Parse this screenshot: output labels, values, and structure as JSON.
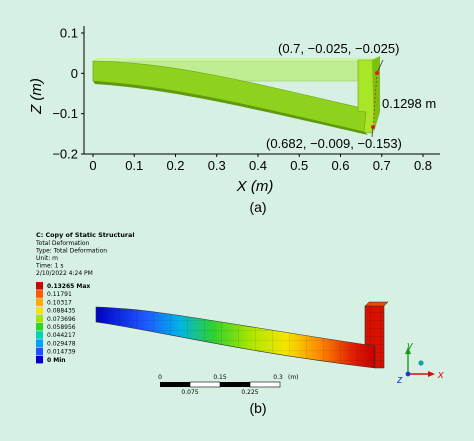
{
  "panel_a": {
    "caption": "(a)",
    "xlabel": "X (m)",
    "ylabel": "Z (m)",
    "xticks": [
      "0",
      "0.1",
      "0.2",
      "0.3",
      "0.4",
      "0.5",
      "0.6",
      "0.7",
      "0.8"
    ],
    "yticks": [
      "0.1",
      "0",
      "−0.1",
      "−0.2"
    ],
    "xlim": [
      0,
      0.8
    ],
    "ylim": [
      -0.2,
      0.1
    ],
    "annotations": {
      "top_point": "(0.7, −0.025, −0.025)",
      "bottom_point": "(0.682, −0.009, −0.153)",
      "displacement": "0.1298 m"
    },
    "colors": {
      "undeformed": "#b9ea8a",
      "deformed": "#8fcf1e",
      "deformed_dark": "#5f9a0c",
      "marker": "#e02020"
    }
  },
  "panel_b": {
    "caption": "(b)",
    "info": {
      "title": "C: Copy of Static Structural",
      "result": "Total Deformation",
      "type": "Type: Total Deformation",
      "unit": "Unit: m",
      "time": "Time: 1 s",
      "date": "2/10/2022 4:24 PM"
    },
    "legend": [
      {
        "label": "0.13265 Max",
        "color": "#d40000"
      },
      {
        "label": "0.11791",
        "color": "#ff5a00"
      },
      {
        "label": "0.10317",
        "color": "#ffae00"
      },
      {
        "label": "0.088435",
        "color": "#f5e600"
      },
      {
        "label": "0.073696",
        "color": "#a8e600"
      },
      {
        "label": "0.058956",
        "color": "#2fd12f"
      },
      {
        "label": "0.044217",
        "color": "#00d2b4"
      },
      {
        "label": "0.029478",
        "color": "#00a0ff"
      },
      {
        "label": "0.014739",
        "color": "#2050ff"
      },
      {
        "label": "0 Min",
        "color": "#0000c8"
      }
    ],
    "scale_bar": {
      "top_labels": [
        "0",
        "0.15",
        "0.3"
      ],
      "unit": "(m)",
      "bottom_labels": [
        "0.075",
        "0.225"
      ]
    },
    "triad": {
      "y": "y",
      "z": "z",
      "x": "x"
    }
  }
}
